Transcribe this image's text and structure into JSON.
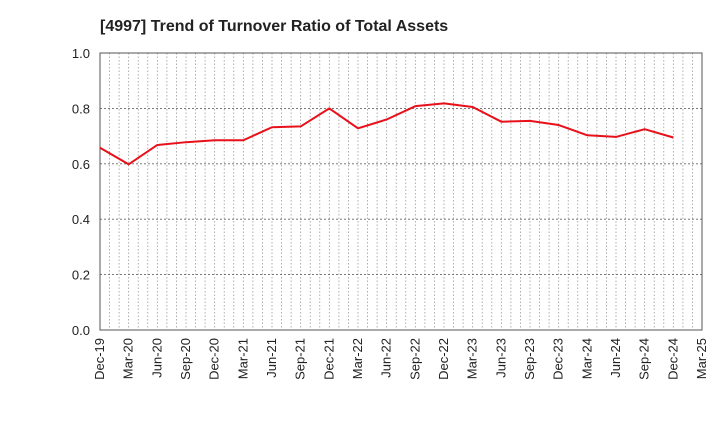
{
  "chart_data": {
    "type": "line",
    "title": "[4997]  Trend of Turnover Ratio of Total Assets",
    "xlabel": "",
    "ylabel": "",
    "ylim": [
      0.0,
      1.0
    ],
    "yticks": [
      "0.0",
      "0.2",
      "0.4",
      "0.6",
      "0.8",
      "1.0"
    ],
    "categories": [
      "Dec-19",
      "Mar-20",
      "Jun-20",
      "Sep-20",
      "Dec-20",
      "Mar-21",
      "Jun-21",
      "Sep-21",
      "Dec-21",
      "Mar-22",
      "Jun-22",
      "Sep-22",
      "Dec-22",
      "Mar-23",
      "Jun-23",
      "Sep-23",
      "Dec-23",
      "Mar-24",
      "Jun-24",
      "Sep-24",
      "Dec-24",
      "Mar-25"
    ],
    "grid": true,
    "series": [
      {
        "color": "#e8101a",
        "values": [
          0.658,
          0.598,
          0.668,
          0.678,
          0.685,
          0.685,
          0.732,
          0.735,
          0.8,
          0.728,
          0.76,
          0.808,
          0.818,
          0.805,
          0.752,
          0.755,
          0.74,
          0.703,
          0.697,
          0.725,
          0.695,
          null
        ]
      }
    ]
  }
}
